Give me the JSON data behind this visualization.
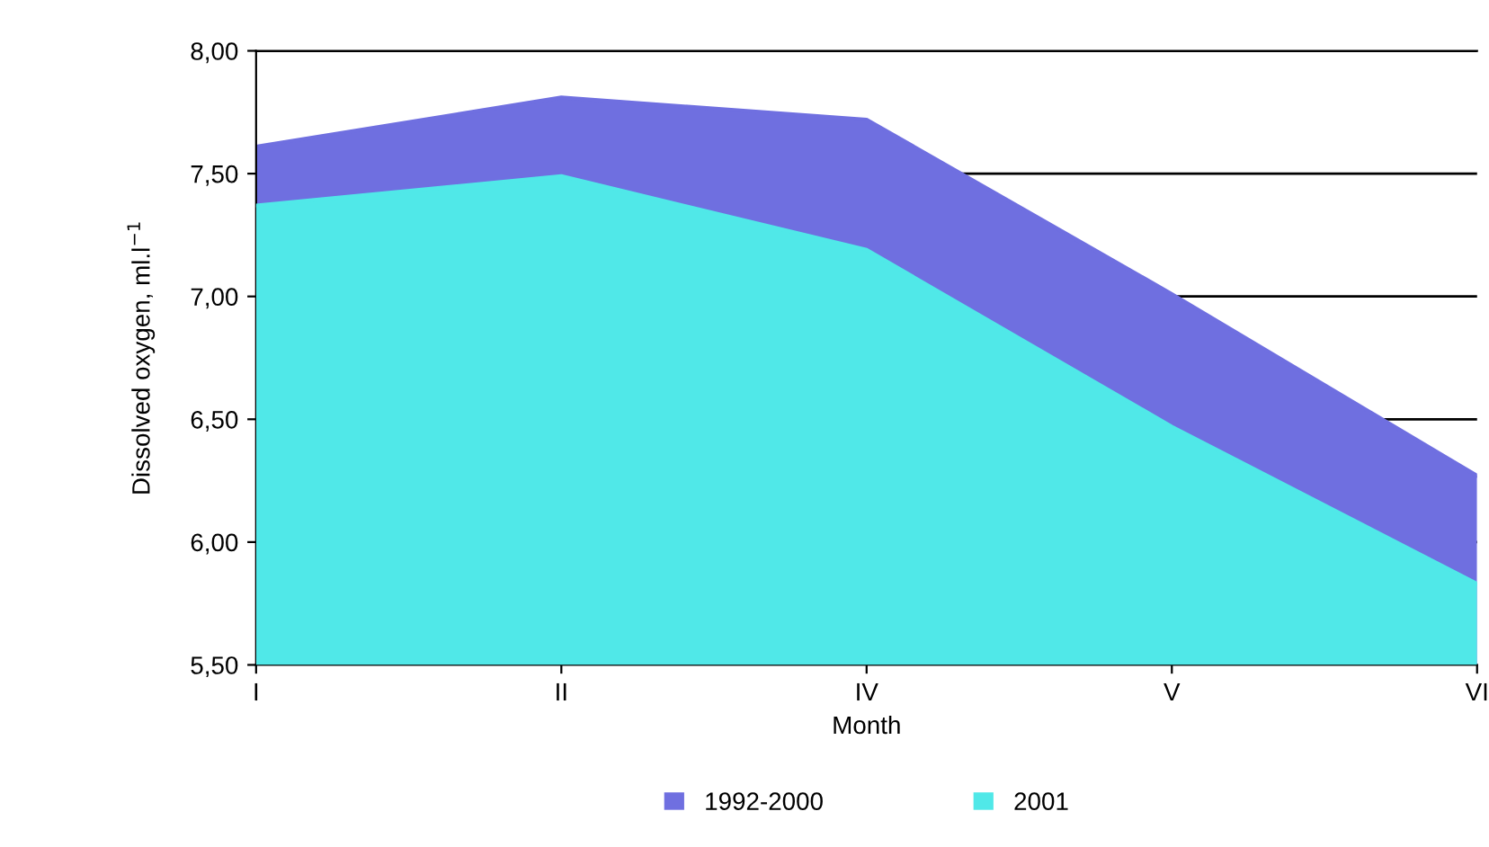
{
  "chart_data": {
    "type": "area",
    "xlabel": "Month",
    "ylabel": "Dissolved oxygen, ml.l$^{−1}$",
    "categories": [
      "I",
      "II",
      "IV",
      "V",
      "VI"
    ],
    "series": [
      {
        "name": "1992-2000",
        "color": "#6f6fe0",
        "values": [
          7.61,
          7.81,
          7.72,
          7.01,
          6.27
        ]
      },
      {
        "name": "2001",
        "color": "#50e8e8",
        "values": [
          7.37,
          7.49,
          7.19,
          6.47,
          5.83
        ]
      }
    ],
    "ylim": [
      5.5,
      8.0
    ],
    "yticks": [
      {
        "value": 5.5,
        "label": "5,50"
      },
      {
        "value": 6.0,
        "label": "6,00"
      },
      {
        "value": 6.5,
        "label": "6,50"
      },
      {
        "value": 7.0,
        "label": "7,00"
      },
      {
        "value": 7.5,
        "label": "7,50"
      },
      {
        "value": 8.0,
        "label": "8,00"
      }
    ],
    "grid": "y",
    "legend": "bottom"
  }
}
